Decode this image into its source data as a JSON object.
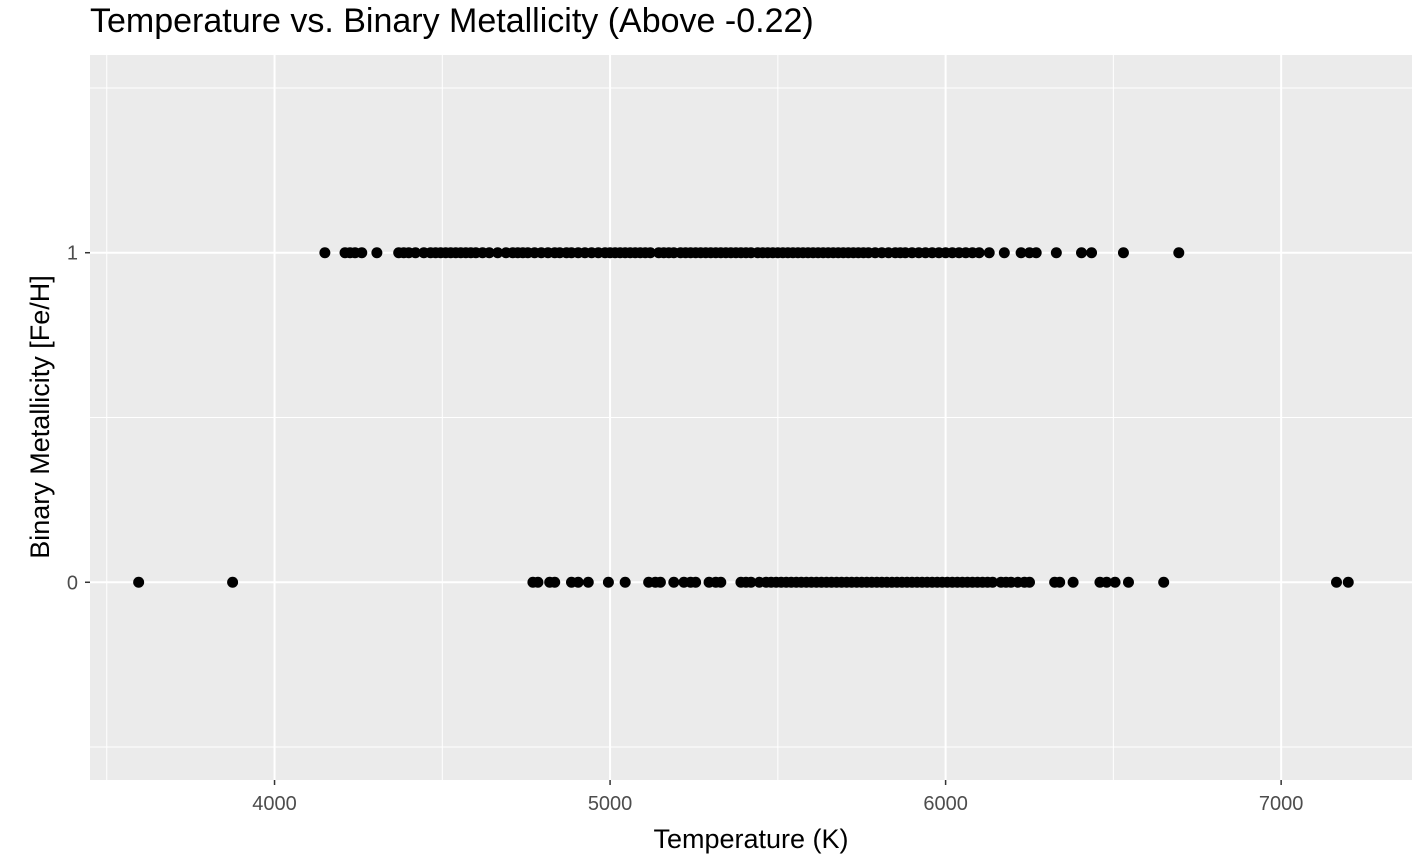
{
  "chart_data": {
    "type": "scatter",
    "title": "Temperature vs. Binary Metallicity (Above -0.22)",
    "xlabel": "Temperature (K)",
    "ylabel": "Binary Metallicity [Fe/H]",
    "xlim": [
      3450,
      7390
    ],
    "ylim": [
      -0.6,
      1.6
    ],
    "x_ticks": [
      4000,
      5000,
      6000,
      7000
    ],
    "x_tick_labels": [
      "4000",
      "5000",
      "6000",
      "7000"
    ],
    "y_ticks": [
      0,
      1
    ],
    "y_tick_labels": [
      "0",
      "1"
    ],
    "grid": true,
    "legend": "none",
    "colors": {
      "panel": "#ebebeb",
      "grid": "#ffffff",
      "point": "#000000",
      "tick": "#333333"
    },
    "series": [
      {
        "points": [
          [
            4150,
            1
          ],
          [
            4210,
            1
          ],
          [
            4225,
            1
          ],
          [
            4240,
            1
          ],
          [
            4260,
            1
          ],
          [
            4305,
            1
          ],
          [
            4370,
            1
          ],
          [
            4385,
            1
          ],
          [
            4400,
            1
          ],
          [
            4420,
            1
          ],
          [
            4445,
            1
          ],
          [
            4465,
            1
          ],
          [
            4480,
            1
          ],
          [
            4495,
            1
          ],
          [
            4510,
            1
          ],
          [
            4525,
            1
          ],
          [
            4540,
            1
          ],
          [
            4555,
            1
          ],
          [
            4570,
            1
          ],
          [
            4585,
            1
          ],
          [
            4600,
            1
          ],
          [
            4620,
            1
          ],
          [
            4640,
            1
          ],
          [
            4665,
            1
          ],
          [
            4690,
            1
          ],
          [
            4710,
            1
          ],
          [
            4725,
            1
          ],
          [
            4740,
            1
          ],
          [
            4755,
            1
          ],
          [
            4775,
            1
          ],
          [
            4795,
            1
          ],
          [
            4815,
            1
          ],
          [
            4835,
            1
          ],
          [
            4850,
            1
          ],
          [
            4870,
            1
          ],
          [
            4885,
            1
          ],
          [
            4905,
            1
          ],
          [
            4925,
            1
          ],
          [
            4945,
            1
          ],
          [
            4965,
            1
          ],
          [
            4985,
            1
          ],
          [
            5000,
            1
          ],
          [
            5015,
            1
          ],
          [
            5030,
            1
          ],
          [
            5045,
            1
          ],
          [
            5060,
            1
          ],
          [
            5075,
            1
          ],
          [
            5090,
            1
          ],
          [
            5105,
            1
          ],
          [
            5120,
            1
          ],
          [
            5145,
            1
          ],
          [
            5160,
            1
          ],
          [
            5175,
            1
          ],
          [
            5190,
            1
          ],
          [
            5210,
            1
          ],
          [
            5225,
            1
          ],
          [
            5240,
            1
          ],
          [
            5255,
            1
          ],
          [
            5270,
            1
          ],
          [
            5285,
            1
          ],
          [
            5300,
            1
          ],
          [
            5315,
            1
          ],
          [
            5330,
            1
          ],
          [
            5345,
            1
          ],
          [
            5360,
            1
          ],
          [
            5375,
            1
          ],
          [
            5390,
            1
          ],
          [
            5405,
            1
          ],
          [
            5420,
            1
          ],
          [
            5440,
            1
          ],
          [
            5455,
            1
          ],
          [
            5470,
            1
          ],
          [
            5485,
            1
          ],
          [
            5500,
            1
          ],
          [
            5515,
            1
          ],
          [
            5530,
            1
          ],
          [
            5545,
            1
          ],
          [
            5560,
            1
          ],
          [
            5575,
            1
          ],
          [
            5590,
            1
          ],
          [
            5605,
            1
          ],
          [
            5620,
            1
          ],
          [
            5635,
            1
          ],
          [
            5650,
            1
          ],
          [
            5665,
            1
          ],
          [
            5680,
            1
          ],
          [
            5695,
            1
          ],
          [
            5710,
            1
          ],
          [
            5725,
            1
          ],
          [
            5740,
            1
          ],
          [
            5755,
            1
          ],
          [
            5770,
            1
          ],
          [
            5790,
            1
          ],
          [
            5810,
            1
          ],
          [
            5830,
            1
          ],
          [
            5850,
            1
          ],
          [
            5865,
            1
          ],
          [
            5880,
            1
          ],
          [
            5900,
            1
          ],
          [
            5920,
            1
          ],
          [
            5940,
            1
          ],
          [
            5960,
            1
          ],
          [
            5980,
            1
          ],
          [
            6000,
            1
          ],
          [
            6020,
            1
          ],
          [
            6040,
            1
          ],
          [
            6060,
            1
          ],
          [
            6080,
            1
          ],
          [
            6100,
            1
          ],
          [
            6130,
            1
          ],
          [
            6175,
            1
          ],
          [
            6225,
            1
          ],
          [
            6250,
            1
          ],
          [
            6270,
            1
          ],
          [
            6330,
            1
          ],
          [
            6405,
            1
          ],
          [
            6435,
            1
          ],
          [
            6530,
            1
          ],
          [
            6695,
            1
          ],
          [
            3595,
            0
          ],
          [
            3875,
            0
          ],
          [
            4770,
            0
          ],
          [
            4785,
            0
          ],
          [
            4820,
            0
          ],
          [
            4835,
            0
          ],
          [
            4885,
            0
          ],
          [
            4905,
            0
          ],
          [
            4935,
            0
          ],
          [
            4995,
            0
          ],
          [
            5045,
            0
          ],
          [
            5115,
            0
          ],
          [
            5135,
            0
          ],
          [
            5150,
            0
          ],
          [
            5190,
            0
          ],
          [
            5220,
            0
          ],
          [
            5240,
            0
          ],
          [
            5255,
            0
          ],
          [
            5295,
            0
          ],
          [
            5315,
            0
          ],
          [
            5330,
            0
          ],
          [
            5390,
            0
          ],
          [
            5405,
            0
          ],
          [
            5420,
            0
          ],
          [
            5445,
            0
          ],
          [
            5465,
            0
          ],
          [
            5480,
            0
          ],
          [
            5495,
            0
          ],
          [
            5510,
            0
          ],
          [
            5525,
            0
          ],
          [
            5540,
            0
          ],
          [
            5555,
            0
          ],
          [
            5570,
            0
          ],
          [
            5585,
            0
          ],
          [
            5600,
            0
          ],
          [
            5615,
            0
          ],
          [
            5630,
            0
          ],
          [
            5645,
            0
          ],
          [
            5660,
            0
          ],
          [
            5675,
            0
          ],
          [
            5690,
            0
          ],
          [
            5705,
            0
          ],
          [
            5720,
            0
          ],
          [
            5735,
            0
          ],
          [
            5750,
            0
          ],
          [
            5765,
            0
          ],
          [
            5780,
            0
          ],
          [
            5795,
            0
          ],
          [
            5810,
            0
          ],
          [
            5825,
            0
          ],
          [
            5840,
            0
          ],
          [
            5855,
            0
          ],
          [
            5870,
            0
          ],
          [
            5885,
            0
          ],
          [
            5900,
            0
          ],
          [
            5915,
            0
          ],
          [
            5930,
            0
          ],
          [
            5945,
            0
          ],
          [
            5960,
            0
          ],
          [
            5975,
            0
          ],
          [
            5990,
            0
          ],
          [
            6005,
            0
          ],
          [
            6020,
            0
          ],
          [
            6035,
            0
          ],
          [
            6050,
            0
          ],
          [
            6065,
            0
          ],
          [
            6080,
            0
          ],
          [
            6095,
            0
          ],
          [
            6110,
            0
          ],
          [
            6125,
            0
          ],
          [
            6140,
            0
          ],
          [
            6165,
            0
          ],
          [
            6180,
            0
          ],
          [
            6195,
            0
          ],
          [
            6215,
            0
          ],
          [
            6235,
            0
          ],
          [
            6250,
            0
          ],
          [
            6325,
            0
          ],
          [
            6340,
            0
          ],
          [
            6380,
            0
          ],
          [
            6460,
            0
          ],
          [
            6480,
            0
          ],
          [
            6505,
            0
          ],
          [
            6545,
            0
          ],
          [
            6650,
            0
          ],
          [
            7165,
            0
          ],
          [
            7200,
            0
          ]
        ]
      }
    ]
  }
}
